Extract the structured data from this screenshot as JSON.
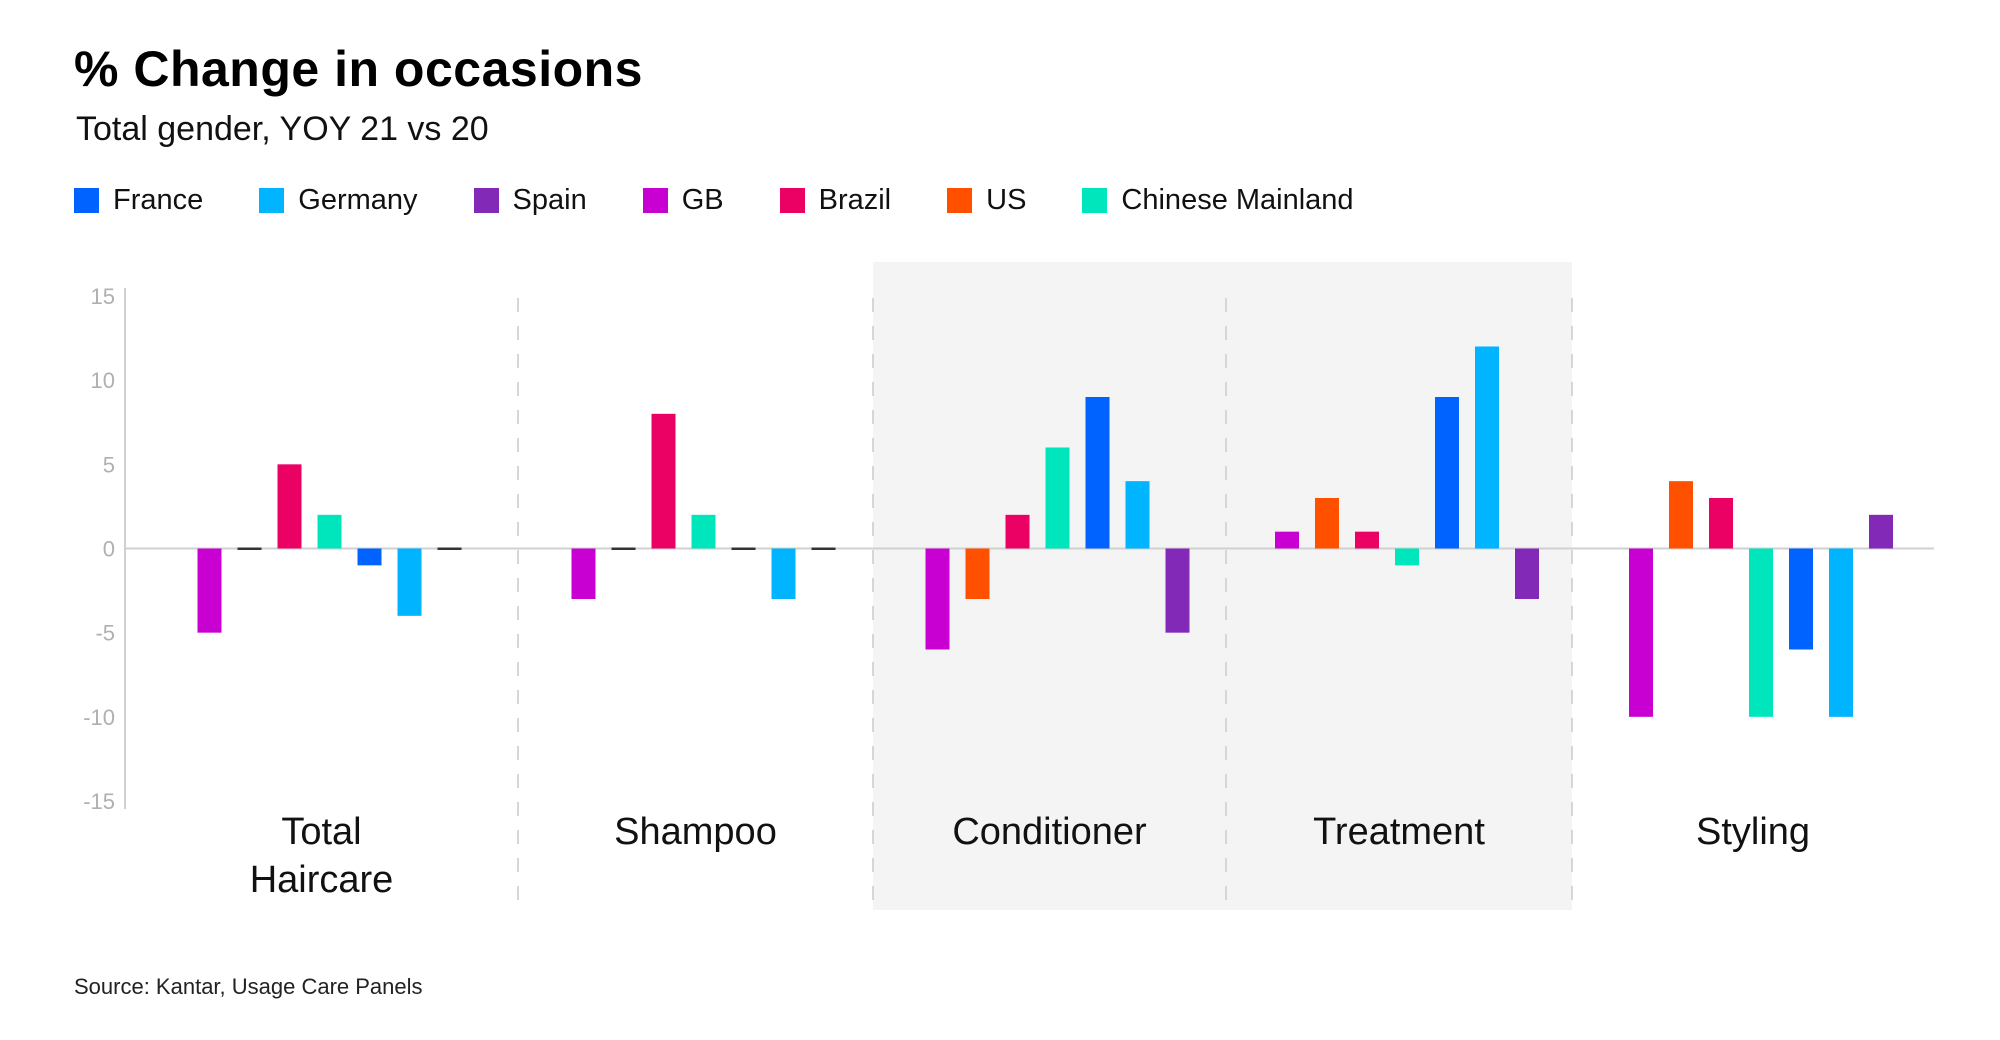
{
  "header": {
    "title": "% Change in occasions",
    "subtitle": "Total gender, YOY 21 vs 20"
  },
  "legend": [
    {
      "name": "France",
      "color": "#0062ff"
    },
    {
      "name": "Germany",
      "color": "#00b4ff"
    },
    {
      "name": "Spain",
      "color": "#8229b8"
    },
    {
      "name": "GB",
      "color": "#c800d2"
    },
    {
      "name": "Brazil",
      "color": "#eb0064"
    },
    {
      "name": "US",
      "color": "#ff5000"
    },
    {
      "name": "Chinese Mainland",
      "color": "#00e6bc"
    }
  ],
  "footer": {
    "source": "Source: Kantar, Usage Care Panels"
  },
  "chart_data": {
    "type": "bar",
    "title": "% Change in occasions",
    "subtitle": "Total gender, YOY 21 vs 20",
    "xlabel": "",
    "ylabel": "",
    "ylim": [
      -15,
      15
    ],
    "yticks": [
      15,
      10,
      5,
      0,
      -5,
      -10,
      -15
    ],
    "grid": false,
    "legend_position": "top-left",
    "categories": [
      "Total Haircare",
      "Shampoo",
      "Conditioner",
      "Treatment",
      "Styling"
    ],
    "category_labels": [
      [
        "Total",
        "Haircare"
      ],
      [
        "Shampoo"
      ],
      [
        "Conditioner"
      ],
      [
        "Treatment"
      ],
      [
        "Styling"
      ]
    ],
    "highlighted_categories": [
      "Conditioner",
      "Treatment"
    ],
    "bar_order": [
      "GB",
      "US",
      "Brazil",
      "Chinese Mainland",
      "France",
      "Germany",
      "Spain"
    ],
    "series": [
      {
        "name": "GB",
        "color": "#c800d2",
        "values": [
          -5,
          -3,
          -6,
          1,
          -10
        ]
      },
      {
        "name": "US",
        "color": "#ff5000",
        "values": [
          0,
          0,
          -3,
          3,
          4
        ]
      },
      {
        "name": "Brazil",
        "color": "#eb0064",
        "values": [
          5,
          8,
          2,
          1,
          3
        ]
      },
      {
        "name": "Chinese Mainland",
        "color": "#00e6bc",
        "values": [
          2,
          2,
          6,
          -1,
          -10
        ]
      },
      {
        "name": "France",
        "color": "#0062ff",
        "values": [
          -1,
          0,
          9,
          9,
          -6
        ]
      },
      {
        "name": "Germany",
        "color": "#00b4ff",
        "values": [
          -4,
          -3,
          4,
          12,
          -10
        ]
      },
      {
        "name": "Spain",
        "color": "#8229b8",
        "values": [
          0,
          0,
          -5,
          -3,
          2
        ]
      }
    ],
    "zero_value_color": "#333333"
  }
}
